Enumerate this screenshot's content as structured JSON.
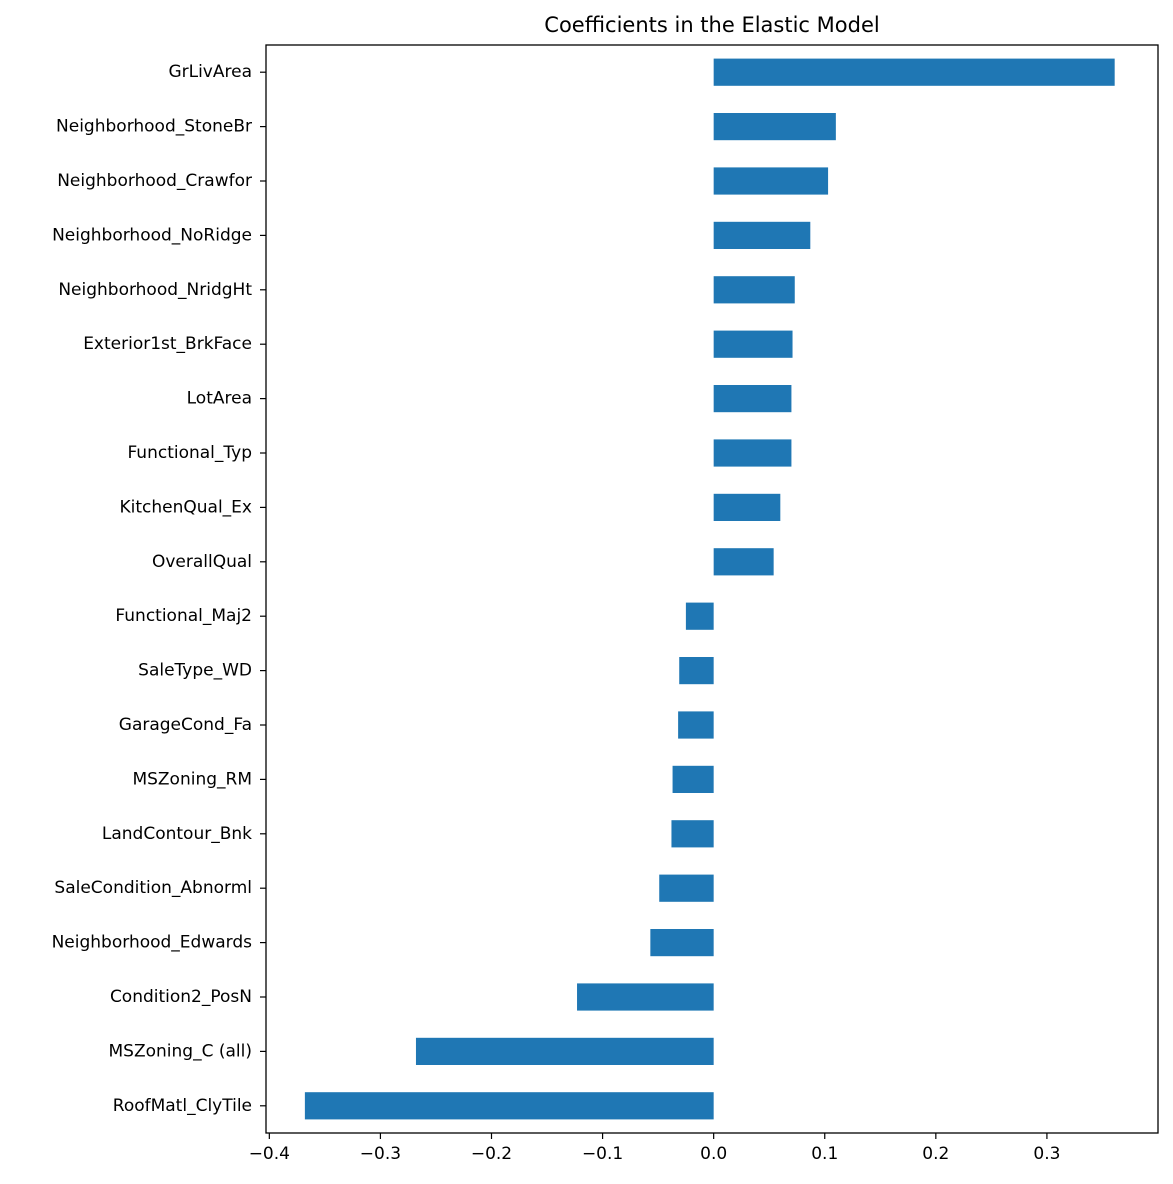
{
  "chart_data": {
    "type": "bar",
    "orientation": "horizontal",
    "title": "Coefficients in the Elastic Model",
    "xlabel": "",
    "ylabel": "",
    "categories": [
      "GrLivArea",
      "Neighborhood_StoneBr",
      "Neighborhood_Crawfor",
      "Neighborhood_NoRidge",
      "Neighborhood_NridgHt",
      "Exterior1st_BrkFace",
      "LotArea",
      "Functional_Typ",
      "KitchenQual_Ex",
      "OverallQual",
      "Functional_Maj2",
      "SaleType_WD",
      "GarageCond_Fa",
      "MSZoning_RM",
      "LandContour_Bnk",
      "SaleCondition_Abnorml",
      "Neighborhood_Edwards",
      "Condition2_PosN",
      "MSZoning_C (all)",
      "RoofMatl_ClyTile"
    ],
    "values": [
      0.361,
      0.11,
      0.103,
      0.087,
      0.073,
      0.071,
      0.07,
      0.07,
      0.06,
      0.054,
      -0.025,
      -0.031,
      -0.032,
      -0.037,
      -0.038,
      -0.049,
      -0.057,
      -0.123,
      -0.268,
      -0.368
    ],
    "xlim": [
      -0.403,
      0.4
    ],
    "xticks": [
      -0.4,
      -0.3,
      -0.2,
      -0.1,
      0.0,
      0.1,
      0.2,
      0.3
    ],
    "xtick_labels": [
      "−0.4",
      "−0.3",
      "−0.2",
      "−0.1",
      "0.0",
      "0.1",
      "0.2",
      "0.3"
    ],
    "grid": false,
    "bar_color": "#1f77b4"
  }
}
